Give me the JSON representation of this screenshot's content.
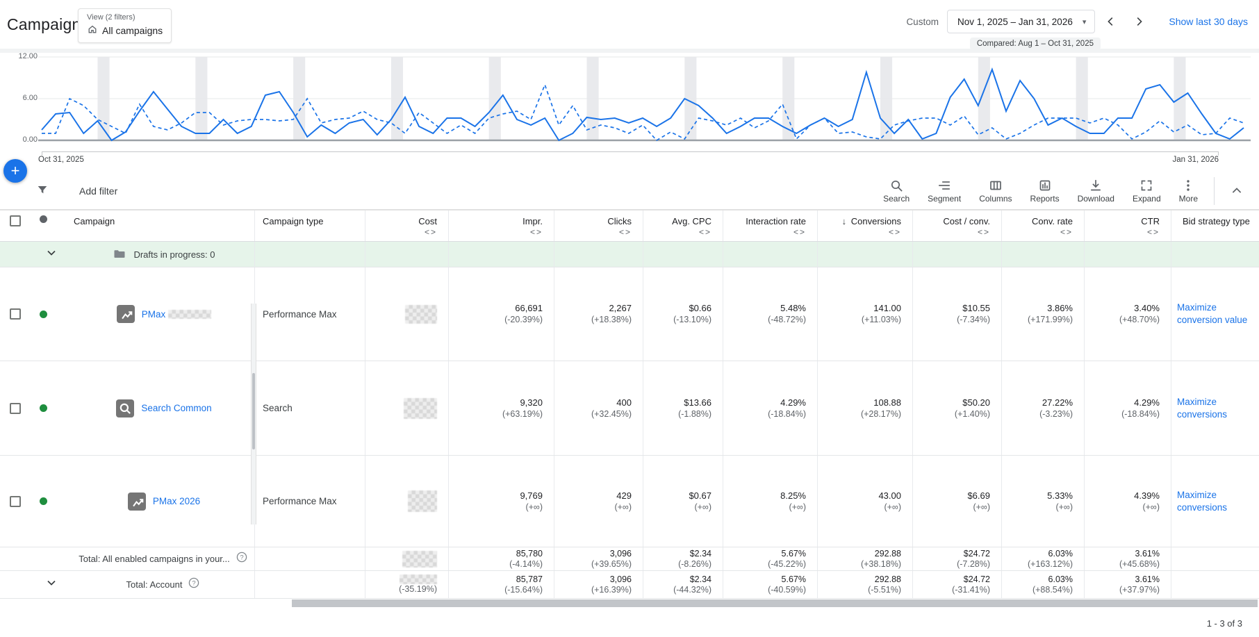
{
  "header": {
    "title": "Campaigns",
    "view_chip": {
      "label": "View (2 filters)",
      "value": "All campaigns"
    },
    "date_range": {
      "mode": "Custom",
      "value": "Nov 1, 2025 – Jan 31, 2026",
      "caret": "▾",
      "compared": "Compared: Aug 1 – Oct 31, 2025",
      "show_last_label": "Show last 30 days"
    },
    "fab_glyph": "+"
  },
  "chart_data": {
    "type": "line",
    "title": "",
    "xlabel": "",
    "ylabel": "",
    "ylim": [
      0,
      12
    ],
    "yticks": [
      "0.00",
      "6.00",
      "12.00"
    ],
    "x_start_label": "Oct 31, 2025",
    "x_end_label": "Jan 31, 2026",
    "grid": true,
    "weekend_bands": true,
    "line_color": "#1a73e8",
    "series": [
      {
        "name": "Nov 1, 2025 – Jan 31, 2026",
        "style": "solid",
        "values": [
          1.5,
          3.8,
          4,
          1,
          2.8,
          0,
          1.2,
          4.2,
          7,
          4.5,
          2,
          1,
          1,
          3,
          1,
          2,
          6.5,
          7,
          4,
          0.5,
          2.2,
          1,
          2.5,
          3,
          0.8,
          3,
          6.2,
          2,
          1,
          3.2,
          3.2,
          2,
          4,
          6.5,
          3,
          2.2,
          3.2,
          0,
          1,
          3.3,
          3,
          3.2,
          2.5,
          3.2,
          2,
          3.2,
          6,
          5,
          3.2,
          1,
          2,
          3.2,
          3.2,
          2,
          1,
          2.2,
          3.2,
          2,
          3,
          9.8,
          3.2,
          1,
          3,
          0.2,
          1,
          6.2,
          8.8,
          5,
          10.2,
          4.2,
          8.6,
          6,
          2.2,
          3.2,
          2,
          1,
          1,
          3.2,
          3.2,
          7.4,
          8,
          5.5,
          6.8,
          3.8,
          1,
          0.2,
          1.8
        ]
      },
      {
        "name": "Aug 1 – Oct 31, 2025",
        "style": "dashed",
        "values": [
          1,
          1,
          6,
          5,
          3,
          2,
          1,
          5.2,
          2,
          1.5,
          2.5,
          4,
          4,
          2.2,
          2.8,
          3,
          3,
          2.8,
          3,
          6,
          2.5,
          3,
          3.2,
          4.2,
          3,
          2.5,
          1,
          4,
          2.5,
          1,
          2.2,
          1,
          3.2,
          3.8,
          4.2,
          3,
          8,
          2.2,
          5,
          1.5,
          2.2,
          1.8,
          1,
          2.2,
          0,
          1.2,
          0.2,
          3.2,
          2.8,
          2.2,
          3.2,
          1.8,
          2.8,
          5.2,
          0.2,
          2.2,
          3.2,
          1,
          1.2,
          0.5,
          0.2,
          2.2,
          2.8,
          3.2,
          3.2,
          2.2,
          3.5,
          0.8,
          1.8,
          0.2,
          1,
          2.2,
          3.2,
          3.2,
          3.2,
          2.5,
          3.2,
          2.2,
          0.2,
          1.2,
          2.8,
          1.2,
          2.2,
          0.8,
          1,
          3.2,
          2.5
        ]
      }
    ]
  },
  "toolbar": {
    "add_filter_label": "Add filter",
    "actions": [
      {
        "id": "search",
        "label": "Search"
      },
      {
        "id": "segment",
        "label": "Segment"
      },
      {
        "id": "columns",
        "label": "Columns"
      },
      {
        "id": "reports",
        "label": "Reports"
      },
      {
        "id": "download",
        "label": "Download"
      },
      {
        "id": "expand",
        "label": "Expand"
      },
      {
        "id": "more",
        "label": "More"
      }
    ]
  },
  "table": {
    "compare_indicator": "<>",
    "sort_indicator": "↓",
    "columns": [
      {
        "id": "checkbox",
        "label": ""
      },
      {
        "id": "status",
        "label": ""
      },
      {
        "id": "campaign",
        "label": "Campaign"
      },
      {
        "id": "type",
        "label": "Campaign type"
      },
      {
        "id": "cost",
        "label": "Cost",
        "compare": true
      },
      {
        "id": "impr",
        "label": "Impr.",
        "compare": true
      },
      {
        "id": "clicks",
        "label": "Clicks",
        "compare": true
      },
      {
        "id": "cpc",
        "label": "Avg. CPC",
        "compare": true
      },
      {
        "id": "interaction",
        "label": "Interaction rate",
        "compare": true
      },
      {
        "id": "conversions",
        "label": "Conversions",
        "compare": true,
        "sorted": true
      },
      {
        "id": "cost_conv",
        "label": "Cost / conv.",
        "compare": true
      },
      {
        "id": "conv_rate",
        "label": "Conv. rate",
        "compare": true
      },
      {
        "id": "ctr",
        "label": "CTR",
        "compare": true
      },
      {
        "id": "bid",
        "label": "Bid strategy type"
      }
    ],
    "drafts_row": {
      "label": "Drafts in progress: 0"
    },
    "rows": [
      {
        "name": "PMax",
        "name_redacted": true,
        "icon": "pmax",
        "status": "enabled",
        "type": "Performance Max",
        "cost_redacted": true,
        "metrics": {
          "impr": [
            "66,691",
            "(-20.39%)"
          ],
          "clicks": [
            "2,267",
            "(+18.38%)"
          ],
          "cpc": [
            "$0.66",
            "(-13.10%)"
          ],
          "interaction": [
            "5.48%",
            "(-48.72%)"
          ],
          "conversions": [
            "141.00",
            "(+11.03%)"
          ],
          "cost_conv": [
            "$10.55",
            "(-7.34%)"
          ],
          "conv_rate": [
            "3.86%",
            "(+171.99%)"
          ],
          "ctr": [
            "3.40%",
            "(+48.70%)"
          ]
        },
        "bid_strategy": "Maximize conversion value"
      },
      {
        "name": "Search Common",
        "name_redacted": false,
        "icon": "search",
        "status": "enabled",
        "type": "Search",
        "cost_redacted": true,
        "metrics": {
          "impr": [
            "9,320",
            "(+63.19%)"
          ],
          "clicks": [
            "400",
            "(+32.45%)"
          ],
          "cpc": [
            "$13.66",
            "(-1.88%)"
          ],
          "interaction": [
            "4.29%",
            "(-18.84%)"
          ],
          "conversions": [
            "108.88",
            "(+28.17%)"
          ],
          "cost_conv": [
            "$50.20",
            "(+1.40%)"
          ],
          "conv_rate": [
            "27.22%",
            "(-3.23%)"
          ],
          "ctr": [
            "4.29%",
            "(-18.84%)"
          ]
        },
        "bid_strategy": "Maximize conversions"
      },
      {
        "name": "PMax 2026",
        "name_redacted": false,
        "icon": "pmax",
        "status": "enabled",
        "type": "Performance Max",
        "cost_redacted": true,
        "metrics": {
          "impr": [
            "9,769",
            "(+∞)"
          ],
          "clicks": [
            "429",
            "(+∞)"
          ],
          "cpc": [
            "$0.67",
            "(+∞)"
          ],
          "interaction": [
            "8.25%",
            "(+∞)"
          ],
          "conversions": [
            "43.00",
            "(+∞)"
          ],
          "cost_conv": [
            "$6.69",
            "(+∞)"
          ],
          "conv_rate": [
            "5.33%",
            "(+∞)"
          ],
          "ctr": [
            "4.39%",
            "(+∞)"
          ]
        },
        "bid_strategy": "Maximize conversions"
      }
    ],
    "totals": [
      {
        "label": "Total: All enabled campaigns in your...",
        "help": true,
        "expand": false,
        "cost_redacted": true,
        "cost_delta": "",
        "metrics": {
          "impr": [
            "85,780",
            "(-4.14%)"
          ],
          "clicks": [
            "3,096",
            "(+39.65%)"
          ],
          "cpc": [
            "$2.34",
            "(-8.26%)"
          ],
          "interaction": [
            "5.67%",
            "(-45.22%)"
          ],
          "conversions": [
            "292.88",
            "(+38.18%)"
          ],
          "cost_conv": [
            "$24.72",
            "(-7.28%)"
          ],
          "conv_rate": [
            "6.03%",
            "(+163.12%)"
          ],
          "ctr": [
            "3.61%",
            "(+45.68%)"
          ]
        }
      },
      {
        "label": "Total: Account",
        "help": true,
        "expand": true,
        "cost_redacted": true,
        "cost_delta": "(-35.19%)",
        "metrics": {
          "impr": [
            "85,787",
            "(-15.64%)"
          ],
          "clicks": [
            "3,096",
            "(+16.39%)"
          ],
          "cpc": [
            "$2.34",
            "(-44.32%)"
          ],
          "interaction": [
            "5.67%",
            "(-40.59%)"
          ],
          "conversions": [
            "292.88",
            "(-5.51%)"
          ],
          "cost_conv": [
            "$24.72",
            "(-31.41%)"
          ],
          "conv_rate": [
            "6.03%",
            "(+88.54%)"
          ],
          "ctr": [
            "3.61%",
            "(+37.97%)"
          ]
        }
      }
    ]
  },
  "footer": {
    "pagination": "1 - 3 of 3"
  }
}
